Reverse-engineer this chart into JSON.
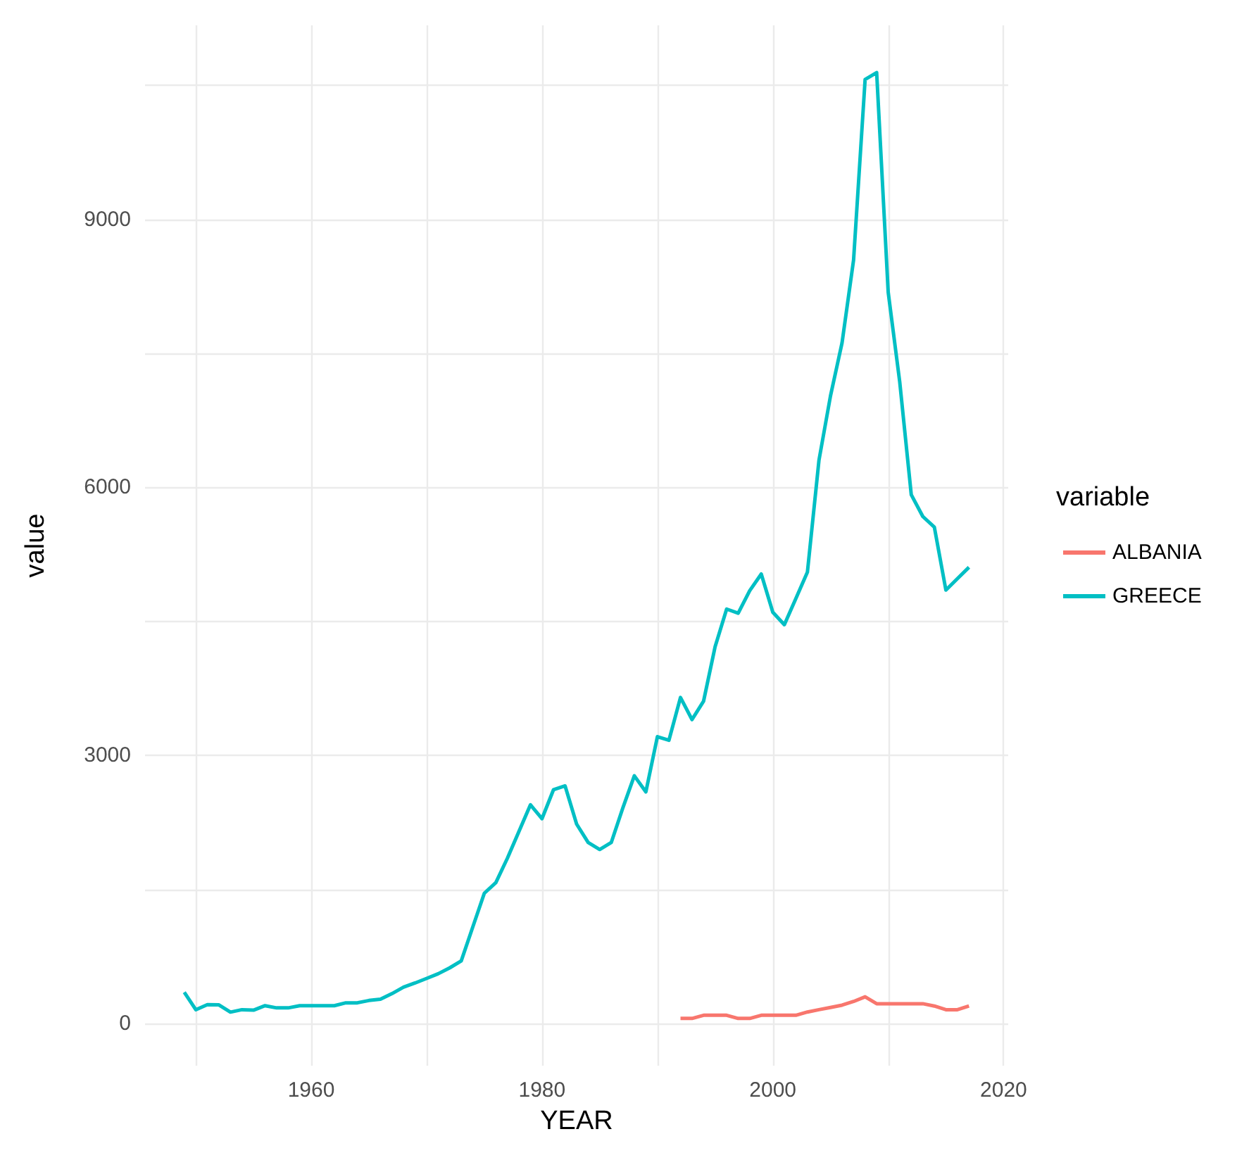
{
  "chart_data": {
    "type": "line",
    "xlabel": "YEAR",
    "ylabel": "value",
    "legend_title": "variable",
    "legend": "right",
    "grid": true,
    "xlim": [
      1945.6,
      2020.4
    ],
    "ylim": [
      -472,
      11172
    ],
    "xticks": [
      {
        "value": 1950,
        "label": null
      },
      1960,
      {
        "value": 1970,
        "label": null
      },
      1980,
      {
        "value": 1990,
        "label": null
      },
      2000,
      {
        "value": 2010,
        "label": null
      },
      2020
    ],
    "yticks": [
      0,
      {
        "value": 1500,
        "label": null
      },
      3000,
      {
        "value": 4500,
        "label": null
      },
      6000,
      {
        "value": 7500,
        "label": null
      },
      9000,
      {
        "value": 10500,
        "label": null
      }
    ],
    "series": [
      {
        "name": "ALBANIA",
        "color": "#f8766d",
        "x": [
          1992,
          1993,
          1994,
          1995,
          1996,
          1997,
          1998,
          1999,
          2000,
          2001,
          2002,
          2003,
          2004,
          2005,
          2006,
          2007,
          2008,
          2009,
          2010,
          2011,
          2012,
          2013,
          2014,
          2015,
          2016,
          2017
        ],
        "values": [
          57,
          57,
          93,
          93,
          93,
          57,
          57,
          93,
          93,
          93,
          93,
          129,
          155,
          180,
          206,
          247,
          299,
          222,
          222,
          222,
          222,
          222,
          196,
          155,
          155,
          196
        ]
      },
      {
        "name": "GREECE",
        "color": "#00bfc4",
        "x": [
          1949,
          1950,
          1951,
          1952,
          1953,
          1954,
          1955,
          1956,
          1957,
          1958,
          1959,
          1960,
          1961,
          1962,
          1963,
          1964,
          1965,
          1966,
          1967,
          1968,
          1969,
          1970,
          1971,
          1972,
          1973,
          1974,
          1975,
          1976,
          1977,
          1978,
          1979,
          1980,
          1981,
          1982,
          1983,
          1984,
          1985,
          1986,
          1987,
          1988,
          1989,
          1990,
          1991,
          1992,
          1993,
          1994,
          1995,
          1996,
          1997,
          1998,
          1999,
          2000,
          2001,
          2002,
          2003,
          2004,
          2005,
          2006,
          2007,
          2008,
          2009,
          2010,
          2011,
          2012,
          2013,
          2014,
          2015,
          2016,
          2017
        ],
        "values": [
          351,
          155,
          212,
          209,
          128,
          155,
          150,
          200,
          175,
          175,
          200,
          200,
          200,
          200,
          232,
          232,
          258,
          273,
          335,
          407,
          454,
          505,
          557,
          623,
          701,
          1080,
          1458,
          1577,
          1850,
          2150,
          2448,
          2293,
          2618,
          2660,
          2232,
          2026,
          1948,
          2026,
          2412,
          2773,
          2593,
          3211,
          3170,
          3649,
          3402,
          3608,
          4217,
          4639,
          4593,
          4845,
          5031,
          4604,
          4464,
          4758,
          5052,
          6304,
          7025,
          7618,
          8546,
          10566,
          10643,
          8185,
          7180,
          5918,
          5675,
          5556,
          4851,
          4980,
          5107
        ]
      }
    ]
  }
}
